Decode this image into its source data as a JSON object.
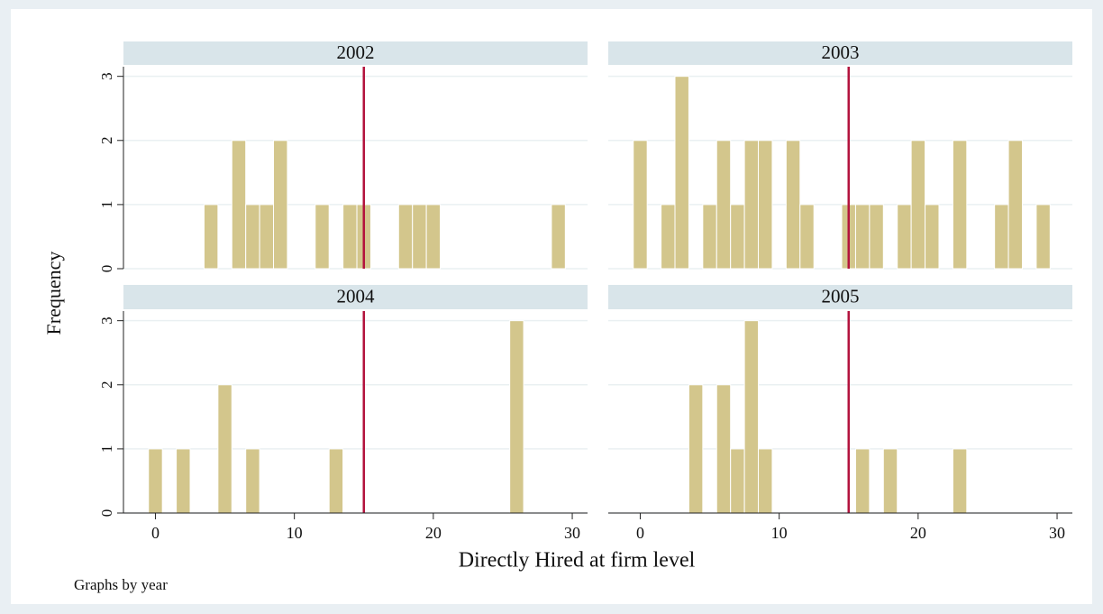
{
  "chart_data": {
    "type": "histogram",
    "x_label": "Directly Hired at firm level",
    "y_label": "Frequency",
    "note": "Graphs by year",
    "color": "#d3c68c",
    "xline": 15,
    "xline_color": "#b3133d",
    "grid": true,
    "xlim": [
      -2.3,
      31.1
    ],
    "ylim": [
      0,
      3.15
    ],
    "xticks": [
      0,
      10,
      20,
      30
    ],
    "yticks": [
      0,
      1,
      2,
      3
    ],
    "bins": [
      -0.5,
      0.5,
      1.5,
      2.5,
      3.5,
      4.5,
      5.5,
      6.5,
      7.5,
      8.5,
      9.5,
      10.5,
      11.5,
      12.5,
      13.5,
      14.5,
      15.5,
      16.5,
      17.5,
      18.5,
      19.5,
      20.5,
      21.5,
      22.5,
      23.5,
      24.5,
      25.5,
      26.5,
      27.5,
      28.5,
      29.5
    ],
    "panels": [
      {
        "title": "2002",
        "values": [
          0,
          0,
          0,
          0,
          1,
          0,
          2,
          1,
          1,
          2,
          0,
          0,
          1,
          0,
          1,
          1,
          0,
          0,
          1,
          1,
          1,
          0,
          0,
          0,
          0,
          0,
          0,
          0,
          0,
          1
        ]
      },
      {
        "title": "2003",
        "values": [
          2,
          0,
          1,
          3,
          0,
          1,
          2,
          1,
          2,
          2,
          0,
          2,
          1,
          0,
          0,
          1,
          1,
          1,
          0,
          1,
          2,
          1,
          0,
          2,
          0,
          0,
          1,
          2,
          0,
          1
        ]
      },
      {
        "title": "2004",
        "values": [
          1,
          0,
          1,
          0,
          0,
          2,
          0,
          1,
          0,
          0,
          0,
          0,
          0,
          1,
          0,
          0,
          0,
          0,
          0,
          0,
          0,
          0,
          0,
          0,
          0,
          0,
          3,
          0,
          0,
          0
        ]
      },
      {
        "title": "2005",
        "values": [
          0,
          0,
          0,
          0,
          2,
          0,
          2,
          1,
          3,
          1,
          0,
          0,
          0,
          0,
          0,
          0,
          1,
          0,
          1,
          0,
          0,
          0,
          0,
          1,
          0,
          0,
          0,
          0,
          0,
          0
        ]
      }
    ]
  }
}
